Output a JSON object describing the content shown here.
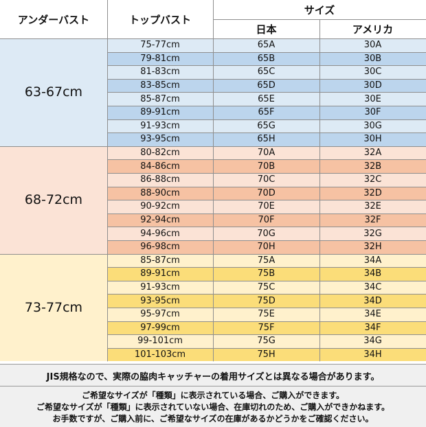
{
  "header": {
    "under_bust": "アンダーバスト",
    "top_bust": "トップバスト",
    "size": "サイズ",
    "japan": "日本",
    "america": "アメリカ"
  },
  "colors": {
    "blue_light": "#ddeaf5",
    "blue_dark": "#bcd5ed",
    "orange_light": "#fbe3d6",
    "orange_dark": "#f6c2a3",
    "yellow_light": "#fff1cc",
    "yellow_dark": "#fbdd79",
    "grid": "#8e8e8e",
    "note_bg": "#f0f0f0"
  },
  "groups": [
    {
      "under_bust": "63-67cm",
      "color_light": "#ddeaf5",
      "color_dark": "#bcd5ed",
      "rows": [
        {
          "top": "75-77cm",
          "jp": "65A",
          "us": "30A"
        },
        {
          "top": "79-81cm",
          "jp": "65B",
          "us": "30B"
        },
        {
          "top": "81-83cm",
          "jp": "65C",
          "us": "30C"
        },
        {
          "top": "83-85cm",
          "jp": "65D",
          "us": "30D"
        },
        {
          "top": "85-87cm",
          "jp": "65E",
          "us": "30E"
        },
        {
          "top": "89-91cm",
          "jp": "65F",
          "us": "30F"
        },
        {
          "top": "91-93cm",
          "jp": "65G",
          "us": "30G"
        },
        {
          "top": "93-95cm",
          "jp": "65H",
          "us": "30H"
        }
      ]
    },
    {
      "under_bust": "68-72cm",
      "color_light": "#fbe3d6",
      "color_dark": "#f6c2a3",
      "rows": [
        {
          "top": "80-82cm",
          "jp": "70A",
          "us": "32A"
        },
        {
          "top": "84-86cm",
          "jp": "70B",
          "us": "32B"
        },
        {
          "top": "86-88cm",
          "jp": "70C",
          "us": "32C"
        },
        {
          "top": "88-90cm",
          "jp": "70D",
          "us": "32D"
        },
        {
          "top": "90-92cm",
          "jp": "70E",
          "us": "32E"
        },
        {
          "top": "92-94cm",
          "jp": "70F",
          "us": "32F"
        },
        {
          "top": "94-96cm",
          "jp": "70G",
          "us": "32G"
        },
        {
          "top": "96-98cm",
          "jp": "70H",
          "us": "32H"
        }
      ]
    },
    {
      "under_bust": "73-77cm",
      "color_light": "#fff1cc",
      "color_dark": "#fbdd79",
      "rows": [
        {
          "top": "85-87cm",
          "jp": "75A",
          "us": "34A"
        },
        {
          "top": "89-91cm",
          "jp": "75B",
          "us": "34B"
        },
        {
          "top": "91-93cm",
          "jp": "75C",
          "us": "34C"
        },
        {
          "top": "93-95cm",
          "jp": "75D",
          "us": "34D"
        },
        {
          "top": "95-97cm",
          "jp": "75E",
          "us": "34E"
        },
        {
          "top": "97-99cm",
          "jp": "75F",
          "us": "34F"
        },
        {
          "top": "99-101cm",
          "jp": "75G",
          "us": "34G"
        },
        {
          "top": "101-103cm",
          "jp": "75H",
          "us": "34H"
        }
      ]
    }
  ],
  "notes": {
    "note1": "JIS規格なので、実際の脇肉キャッチャーの着用サイズとは異なる場合があります。",
    "lines": [
      "ご希望なサイズが「種類」に表示されている場合、ご購入ができます。",
      "ご希望なサイズが「種類」に表示されていない場合、在庫切れのため、ご購入ができかねます。",
      "お手数ですが、ご購入前に、ご希望なサイズの在庫があるかどうかをご確認ください。"
    ]
  }
}
